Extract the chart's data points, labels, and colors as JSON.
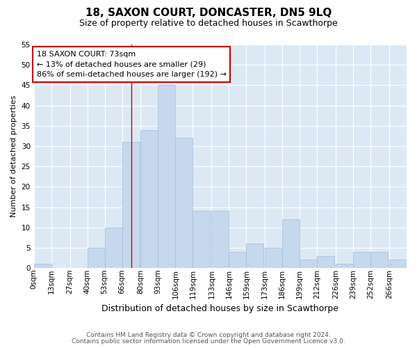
{
  "title1": "18, SAXON COURT, DONCASTER, DN5 9LQ",
  "title2": "Size of property relative to detached houses in Scawthorpe",
  "xlabel": "Distribution of detached houses by size in Scawthorpe",
  "ylabel": "Number of detached properties",
  "categories": [
    "0sqm",
    "13sqm",
    "27sqm",
    "40sqm",
    "53sqm",
    "66sqm",
    "80sqm",
    "93sqm",
    "106sqm",
    "119sqm",
    "133sqm",
    "146sqm",
    "159sqm",
    "173sqm",
    "186sqm",
    "199sqm",
    "212sqm",
    "226sqm",
    "239sqm",
    "252sqm",
    "266sqm"
  ],
  "values": [
    1,
    0,
    0,
    5,
    10,
    31,
    34,
    45,
    32,
    14,
    14,
    4,
    6,
    5,
    12,
    2,
    3,
    1,
    4,
    4,
    2
  ],
  "bar_color": "#c5d8ed",
  "bar_edge_color": "#a0bcd8",
  "ylim_max": 55,
  "yticks": [
    0,
    5,
    10,
    15,
    20,
    25,
    30,
    35,
    40,
    45,
    50,
    55
  ],
  "property_line_x": 73,
  "property_line_color": "#cc0000",
  "annotation_line1": "18 SAXON COURT: 73sqm",
  "annotation_line2": "← 13% of detached houses are smaller (29)",
  "annotation_line3": "86% of semi-detached houses are larger (192) →",
  "annotation_box_edge_color": "#cc0000",
  "footer1": "Contains HM Land Registry data © Crown copyright and database right 2024.",
  "footer2": "Contains public sector information licensed under the Open Government Licence v3.0.",
  "plot_bg_color": "#dce9f5",
  "fig_bg_color": "#ffffff",
  "grid_color": "#ffffff",
  "bin_width": 13,
  "title1_fontsize": 11,
  "title2_fontsize": 9,
  "ylabel_fontsize": 8,
  "xlabel_fontsize": 9,
  "tick_fontsize": 7.5,
  "annot_fontsize": 8,
  "footer_fontsize": 6.5
}
